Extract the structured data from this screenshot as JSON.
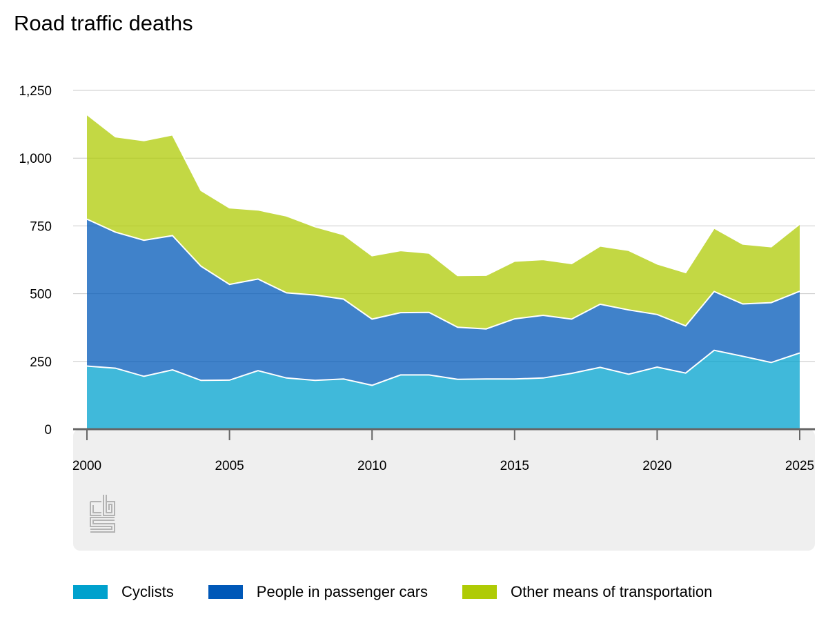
{
  "chart_data": {
    "type": "area",
    "stacked": true,
    "title": "Road traffic deaths",
    "xlabel": "",
    "ylabel": "",
    "x": [
      2000,
      2001,
      2002,
      2003,
      2004,
      2005,
      2006,
      2007,
      2008,
      2009,
      2010,
      2011,
      2012,
      2013,
      2014,
      2015,
      2016,
      2017,
      2018,
      2019,
      2020,
      2021,
      2022,
      2023,
      2024,
      2025
    ],
    "xlim": [
      2000,
      2025
    ],
    "xticks": [
      2000,
      2005,
      2010,
      2015,
      2020,
      2025
    ],
    "ylim": [
      0,
      1250
    ],
    "yticks": [
      {
        "value": 0,
        "label": "0"
      },
      {
        "value": 250,
        "label": "250"
      },
      {
        "value": 500,
        "label": "500"
      },
      {
        "value": 750,
        "label": "750"
      },
      {
        "value": 1000,
        "label": "1,000"
      },
      {
        "value": 1250,
        "label": "1,250"
      }
    ],
    "grid": true,
    "legend_position": "bottom",
    "series": [
      {
        "name": "Cyclists",
        "color": "#00a1cd",
        "values": [
          233,
          225,
          195,
          219,
          180,
          181,
          216,
          189,
          180,
          185,
          162,
          200,
          200,
          184,
          185,
          185,
          189,
          206,
          228,
          203,
          229,
          207,
          291,
          269,
          246,
          281
        ]
      },
      {
        "name": "People in passenger cars",
        "color": "#0058b8",
        "values": [
          542,
          502,
          502,
          495,
          421,
          353,
          338,
          314,
          315,
          295,
          244,
          230,
          231,
          192,
          185,
          222,
          231,
          200,
          233,
          237,
          194,
          174,
          217,
          193,
          221,
          228
        ]
      },
      {
        "name": "Other means of transportation",
        "color": "#afcb05",
        "values": [
          386,
          352,
          368,
          372,
          280,
          283,
          255,
          284,
          252,
          238,
          234,
          229,
          219,
          191,
          198,
          213,
          206,
          205,
          215,
          220,
          187,
          197,
          234,
          221,
          206,
          248
        ]
      }
    ]
  }
}
